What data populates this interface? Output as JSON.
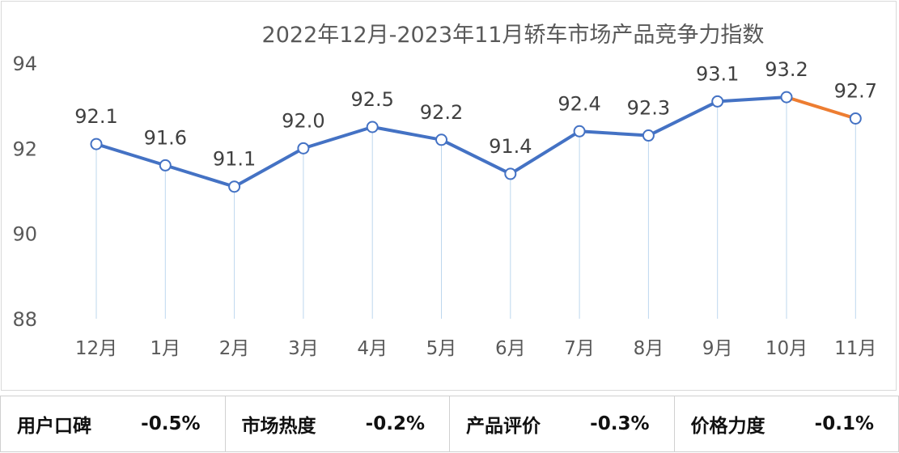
{
  "chart_data": {
    "type": "line",
    "title": "2022年12月-2023年11月轿车市场产品竞争力指数",
    "categories": [
      "12月",
      "1月",
      "2月",
      "3月",
      "4月",
      "5月",
      "6月",
      "7月",
      "8月",
      "9月",
      "10月",
      "11月"
    ],
    "series": [
      {
        "values": [
          92.1,
          91.6,
          91.1,
          92.0,
          92.5,
          92.2,
          91.4,
          92.4,
          92.3,
          93.1,
          93.2,
          92.7
        ]
      }
    ],
    "ylim": [
      88,
      94
    ],
    "yticks": [
      88,
      90,
      92,
      94
    ],
    "grid": false,
    "colors": {
      "line": "#4472c4",
      "last_segment": "#ed7d31",
      "drop_lines": "#bdd7ee"
    }
  },
  "metrics": [
    {
      "label": "用户口碑",
      "value": "-0.5%"
    },
    {
      "label": "市场热度",
      "value": "-0.2%"
    },
    {
      "label": "产品评价",
      "value": "-0.3%"
    },
    {
      "label": "价格力度",
      "value": "-0.1%"
    }
  ]
}
